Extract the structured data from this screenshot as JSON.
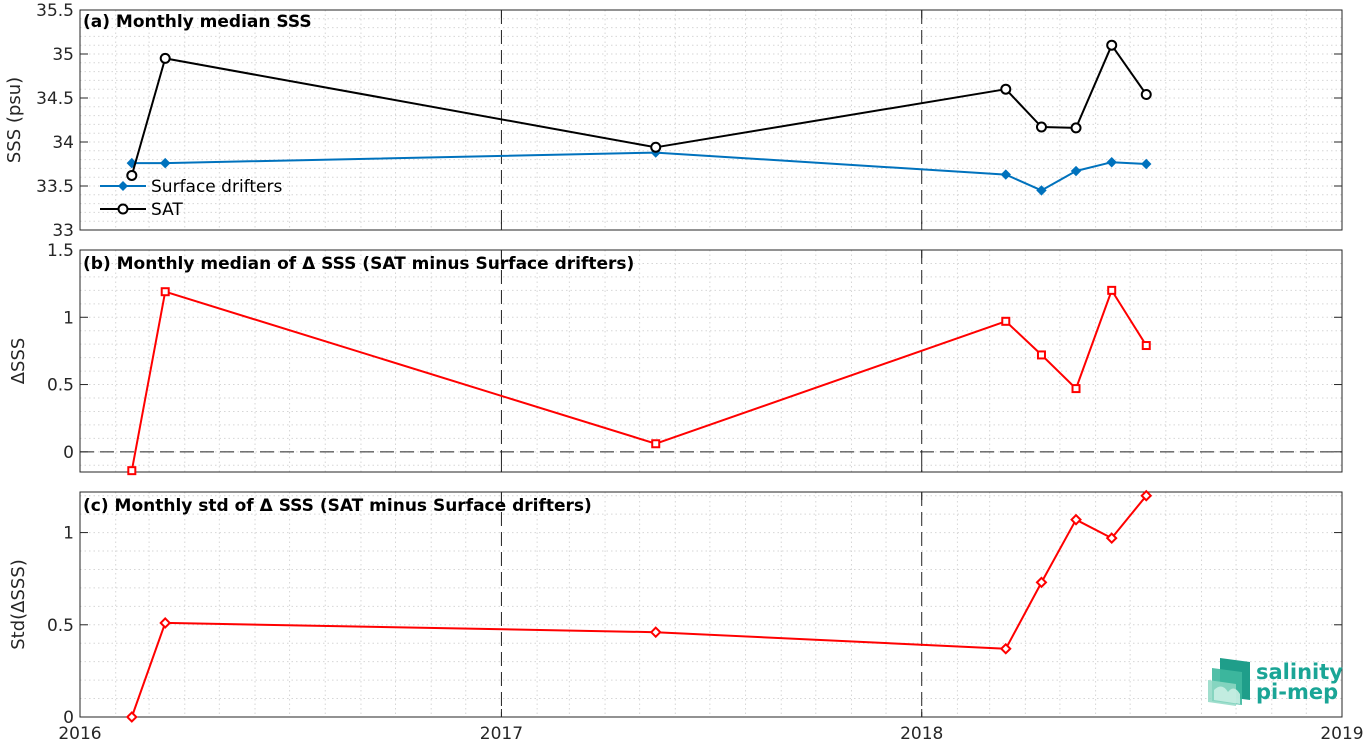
{
  "chart_data": [
    {
      "type": "line",
      "title": "(a) Monthly median SSS",
      "xlabel": "",
      "ylabel": "SSS (psu)",
      "xlim": [
        "2016-01-01",
        "2019-01-01"
      ],
      "ylim": [
        33,
        35.5
      ],
      "x_ticks": [
        "2016",
        "2017",
        "2018",
        "2019"
      ],
      "y_ticks": [
        "33",
        "33.5",
        "34",
        "34.5",
        "35",
        "35.5"
      ],
      "legend_position": "bottom-left",
      "grid": "dotted",
      "series": [
        {
          "name": "Surface drifters",
          "color": "#0072bd",
          "marker": "filled-diamond",
          "x": [
            "2016-02-15",
            "2016-03-15",
            "2017-05-15",
            "2018-03-15",
            "2018-04-15",
            "2018-05-15",
            "2018-06-15",
            "2018-07-15"
          ],
          "y": [
            33.76,
            33.76,
            33.88,
            33.63,
            33.45,
            33.67,
            33.77,
            33.75
          ]
        },
        {
          "name": "SAT",
          "color": "#000000",
          "marker": "circle",
          "x": [
            "2016-02-15",
            "2016-03-15",
            "2017-05-15",
            "2018-03-15",
            "2018-04-15",
            "2018-05-15",
            "2018-06-15",
            "2018-07-15"
          ],
          "y": [
            33.62,
            34.95,
            33.94,
            34.6,
            34.17,
            34.16,
            35.1,
            34.54
          ]
        }
      ]
    },
    {
      "type": "line",
      "title": "(b) Monthly median of Δ SSS (SAT minus Surface drifters)",
      "xlabel": "",
      "ylabel": "ΔSSS",
      "xlim": [
        "2016-01-01",
        "2019-01-01"
      ],
      "ylim": [
        -0.15,
        1.5
      ],
      "x_ticks": [
        "2016",
        "2017",
        "2018",
        "2019"
      ],
      "y_ticks": [
        "0",
        "0.5",
        "1",
        "1.5"
      ],
      "grid": "dotted",
      "reference_line": 0,
      "series": [
        {
          "color": "#ff0000",
          "marker": "square",
          "x": [
            "2016-02-15",
            "2016-03-15",
            "2017-05-15",
            "2018-03-15",
            "2018-04-15",
            "2018-05-15",
            "2018-06-15",
            "2018-07-15"
          ],
          "y": [
            -0.14,
            1.19,
            0.06,
            0.97,
            0.72,
            0.47,
            1.2,
            0.79
          ]
        }
      ]
    },
    {
      "type": "line",
      "title": "(c) Monthly std of Δ SSS (SAT minus Surface drifters)",
      "xlabel": "",
      "ylabel": "Std(ΔSSS)",
      "xlim": [
        "2016-01-01",
        "2019-01-01"
      ],
      "ylim": [
        0,
        1.22
      ],
      "x_ticks": [
        "2016",
        "2017",
        "2018",
        "2019"
      ],
      "y_ticks": [
        "0",
        "0.5",
        "1"
      ],
      "grid": "dotted",
      "series": [
        {
          "color": "#ff0000",
          "marker": "diamond",
          "x": [
            "2016-02-15",
            "2016-03-15",
            "2017-05-15",
            "2018-03-15",
            "2018-04-15",
            "2018-05-15",
            "2018-06-15",
            "2018-07-15"
          ],
          "y": [
            0.0,
            0.51,
            0.46,
            0.37,
            0.73,
            1.07,
            0.97,
            1.2
          ]
        }
      ]
    }
  ],
  "logo": {
    "line1": "salinity",
    "line2": "pi-mep"
  }
}
